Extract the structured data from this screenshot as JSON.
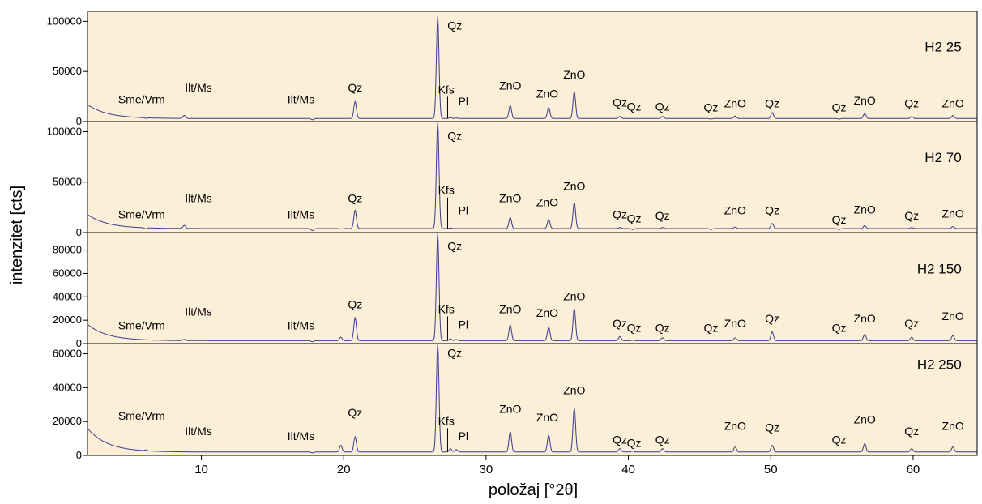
{
  "chart_data": {
    "type": "line",
    "xlabel": "položaj [°2θ]",
    "ylabel": "intenzitet [cts]",
    "xlim": [
      2,
      64.5
    ],
    "x_ticks": [
      10,
      20,
      30,
      40,
      50,
      60
    ],
    "colors": {
      "line": "#3b3b8f",
      "background": "#fcefd8",
      "axis": "#000000"
    },
    "grid": false,
    "panels": [
      {
        "name": "H2 25",
        "ylim": [
          0,
          110000
        ],
        "y_ticks": [
          0,
          50000,
          100000
        ],
        "background": 3000,
        "peaks": [
          [
            6.1,
            2500
          ],
          [
            8.8,
            6000
          ],
          [
            12.5,
            3000
          ],
          [
            17.8,
            1800
          ],
          [
            19.8,
            3000
          ],
          [
            20.8,
            20000
          ],
          [
            26.6,
            105000
          ],
          [
            27.5,
            4000
          ],
          [
            27.9,
            3500
          ],
          [
            31.7,
            16000
          ],
          [
            34.4,
            14000
          ],
          [
            36.2,
            30000
          ],
          [
            39.4,
            5000
          ],
          [
            40.3,
            3000
          ],
          [
            42.4,
            5000
          ],
          [
            45.8,
            2500
          ],
          [
            47.5,
            5500
          ],
          [
            50.1,
            9000
          ],
          [
            54.8,
            2500
          ],
          [
            56.6,
            8000
          ],
          [
            59.9,
            5000
          ],
          [
            62.8,
            6000
          ]
        ],
        "labels": [
          {
            "text": "Sme/Vrm",
            "x": 5.8,
            "y": 18000
          },
          {
            "text": "Ilt/Ms",
            "x": 9.8,
            "y": 30000
          },
          {
            "text": "Ilt/Ms",
            "x": 17.0,
            "y": 18000
          },
          {
            "text": "Qz",
            "x": 20.8,
            "y": 30000
          },
          {
            "text": "Qz",
            "x": 27.8,
            "y": 92000
          },
          {
            "text": "Kfs",
            "x": 27.2,
            "y": 28000
          },
          {
            "text": "Pl",
            "x": 28.4,
            "y": 16000
          },
          {
            "text": "ZnO",
            "x": 31.7,
            "y": 32000
          },
          {
            "text": "ZnO",
            "x": 34.3,
            "y": 24000
          },
          {
            "text": "ZnO",
            "x": 36.2,
            "y": 43000
          },
          {
            "text": "Qz",
            "x": 39.4,
            "y": 15000
          },
          {
            "text": "Qz",
            "x": 40.4,
            "y": 11000
          },
          {
            "text": "Qz",
            "x": 42.4,
            "y": 11000
          },
          {
            "text": "Qz",
            "x": 45.8,
            "y": 10000
          },
          {
            "text": "ZnO",
            "x": 47.5,
            "y": 14000
          },
          {
            "text": "Qz",
            "x": 50.1,
            "y": 14000
          },
          {
            "text": "Qz",
            "x": 54.8,
            "y": 10000
          },
          {
            "text": "ZnO",
            "x": 56.6,
            "y": 17000
          },
          {
            "text": "Qz",
            "x": 59.9,
            "y": 14000
          },
          {
            "text": "ZnO",
            "x": 62.8,
            "y": 14000
          },
          {
            "text": "H2 25",
            "x": 63.4,
            "y": 70000
          }
        ]
      },
      {
        "name": "H2 70",
        "ylim": [
          0,
          110000
        ],
        "y_ticks": [
          0,
          50000,
          100000
        ],
        "background": 4000,
        "peaks": [
          [
            6.1,
            3000
          ],
          [
            8.8,
            7000
          ],
          [
            12.5,
            4000
          ],
          [
            17.8,
            2000
          ],
          [
            19.8,
            3500
          ],
          [
            20.8,
            22000
          ],
          [
            26.6,
            110000
          ],
          [
            27.5,
            4500
          ],
          [
            27.9,
            4000
          ],
          [
            31.7,
            15000
          ],
          [
            34.4,
            13000
          ],
          [
            36.2,
            30000
          ],
          [
            39.4,
            5000
          ],
          [
            40.3,
            3000
          ],
          [
            42.4,
            5000
          ],
          [
            45.8,
            3000
          ],
          [
            47.5,
            5500
          ],
          [
            50.1,
            9000
          ],
          [
            54.8,
            3000
          ],
          [
            56.6,
            7000
          ],
          [
            59.9,
            5000
          ],
          [
            62.8,
            6000
          ]
        ],
        "labels": [
          {
            "text": "Sme/Vrm",
            "x": 5.8,
            "y": 14000
          },
          {
            "text": "Ilt/Ms",
            "x": 9.8,
            "y": 30000
          },
          {
            "text": "Ilt/Ms",
            "x": 17.0,
            "y": 14000
          },
          {
            "text": "Qz",
            "x": 20.8,
            "y": 30000
          },
          {
            "text": "Qz",
            "x": 27.8,
            "y": 92000
          },
          {
            "text": "Kfs",
            "x": 27.2,
            "y": 38000
          },
          {
            "text": "Pl",
            "x": 28.4,
            "y": 18000
          },
          {
            "text": "ZnO",
            "x": 31.7,
            "y": 30000
          },
          {
            "text": "ZnO",
            "x": 34.3,
            "y": 26000
          },
          {
            "text": "ZnO",
            "x": 36.2,
            "y": 42000
          },
          {
            "text": "Qz",
            "x": 39.4,
            "y": 14000
          },
          {
            "text": "Qz",
            "x": 40.4,
            "y": 10000
          },
          {
            "text": "Qz",
            "x": 42.4,
            "y": 13000
          },
          {
            "text": "ZnO",
            "x": 47.5,
            "y": 18000
          },
          {
            "text": "Qz",
            "x": 50.1,
            "y": 18000
          },
          {
            "text": "Qz",
            "x": 54.8,
            "y": 9000
          },
          {
            "text": "ZnO",
            "x": 56.6,
            "y": 19000
          },
          {
            "text": "Qz",
            "x": 59.9,
            "y": 13000
          },
          {
            "text": "ZnO",
            "x": 62.8,
            "y": 15000
          },
          {
            "text": "H2 70",
            "x": 63.4,
            "y": 70000
          }
        ]
      },
      {
        "name": "H2 150",
        "ylim": [
          0,
          95000
        ],
        "y_ticks": [
          0,
          20000,
          40000,
          60000,
          80000
        ],
        "background": 2500,
        "peaks": [
          [
            6.1,
            2500
          ],
          [
            8.8,
            3500
          ],
          [
            17.8,
            1500
          ],
          [
            19.8,
            5500
          ],
          [
            20.8,
            22000
          ],
          [
            26.6,
            95000
          ],
          [
            27.5,
            4000
          ],
          [
            27.9,
            3500
          ],
          [
            31.7,
            16000
          ],
          [
            34.4,
            14000
          ],
          [
            36.2,
            30000
          ],
          [
            39.4,
            6000
          ],
          [
            40.3,
            3000
          ],
          [
            42.4,
            5000
          ],
          [
            45.8,
            2500
          ],
          [
            47.5,
            5000
          ],
          [
            50.1,
            10000
          ],
          [
            54.8,
            2500
          ],
          [
            56.6,
            8000
          ],
          [
            59.9,
            5500
          ],
          [
            62.8,
            7000
          ]
        ],
        "labels": [
          {
            "text": "Sme/Vrm",
            "x": 5.8,
            "y": 12000
          },
          {
            "text": "Ilt/Ms",
            "x": 9.8,
            "y": 24000
          },
          {
            "text": "Ilt/Ms",
            "x": 17.0,
            "y": 12000
          },
          {
            "text": "Qz",
            "x": 20.8,
            "y": 30000
          },
          {
            "text": "Qz",
            "x": 27.8,
            "y": 80000
          },
          {
            "text": "Kfs",
            "x": 27.2,
            "y": 26000
          },
          {
            "text": "Pl",
            "x": 28.4,
            "y": 13000
          },
          {
            "text": "ZnO",
            "x": 31.7,
            "y": 26000
          },
          {
            "text": "ZnO",
            "x": 34.3,
            "y": 23000
          },
          {
            "text": "ZnO",
            "x": 36.2,
            "y": 37000
          },
          {
            "text": "Qz",
            "x": 39.4,
            "y": 14000
          },
          {
            "text": "Qz",
            "x": 40.4,
            "y": 10000
          },
          {
            "text": "Qz",
            "x": 42.4,
            "y": 10000
          },
          {
            "text": "Qz",
            "x": 45.8,
            "y": 10000
          },
          {
            "text": "ZnO",
            "x": 47.5,
            "y": 14000
          },
          {
            "text": "Qz",
            "x": 50.1,
            "y": 18000
          },
          {
            "text": "Qz",
            "x": 54.8,
            "y": 10000
          },
          {
            "text": "ZnO",
            "x": 56.6,
            "y": 18000
          },
          {
            "text": "Qz",
            "x": 59.9,
            "y": 14000
          },
          {
            "text": "ZnO",
            "x": 62.8,
            "y": 20000
          },
          {
            "text": "H2 150",
            "x": 63.4,
            "y": 60000
          }
        ]
      },
      {
        "name": "H2 250",
        "ylim": [
          0,
          66000
        ],
        "y_ticks": [
          0,
          20000,
          40000,
          60000
        ],
        "background": 2000,
        "peaks": [
          [
            6.1,
            2500
          ],
          [
            8.8,
            2000
          ],
          [
            17.8,
            1500
          ],
          [
            19.8,
            6000
          ],
          [
            20.8,
            11000
          ],
          [
            26.6,
            66000
          ],
          [
            27.5,
            4000
          ],
          [
            27.9,
            3500
          ],
          [
            31.7,
            14000
          ],
          [
            34.4,
            12000
          ],
          [
            36.2,
            28000
          ],
          [
            39.4,
            4000
          ],
          [
            40.3,
            2500
          ],
          [
            42.4,
            4000
          ],
          [
            45.8,
            2000
          ],
          [
            47.5,
            5000
          ],
          [
            50.1,
            6000
          ],
          [
            54.8,
            2000
          ],
          [
            56.6,
            7000
          ],
          [
            59.9,
            4000
          ],
          [
            62.8,
            5000
          ]
        ],
        "labels": [
          {
            "text": "Sme/Vrm",
            "x": 5.8,
            "y": 21000
          },
          {
            "text": "Ilt/Ms",
            "x": 9.8,
            "y": 12000
          },
          {
            "text": "Ilt/Ms",
            "x": 17.0,
            "y": 9000
          },
          {
            "text": "Qz",
            "x": 20.8,
            "y": 23000
          },
          {
            "text": "Qz",
            "x": 27.8,
            "y": 58000
          },
          {
            "text": "Kfs",
            "x": 27.2,
            "y": 18000
          },
          {
            "text": "Pl",
            "x": 28.4,
            "y": 9000
          },
          {
            "text": "ZnO",
            "x": 31.7,
            "y": 25000
          },
          {
            "text": "ZnO",
            "x": 34.3,
            "y": 20000
          },
          {
            "text": "ZnO",
            "x": 36.2,
            "y": 36000
          },
          {
            "text": "Qz",
            "x": 39.4,
            "y": 7000
          },
          {
            "text": "Qz",
            "x": 40.4,
            "y": 5000
          },
          {
            "text": "Qz",
            "x": 42.4,
            "y": 7000
          },
          {
            "text": "ZnO",
            "x": 47.5,
            "y": 15000
          },
          {
            "text": "Qz",
            "x": 50.1,
            "y": 14000
          },
          {
            "text": "Qz",
            "x": 54.8,
            "y": 7000
          },
          {
            "text": "ZnO",
            "x": 56.6,
            "y": 19000
          },
          {
            "text": "Qz",
            "x": 59.9,
            "y": 12000
          },
          {
            "text": "ZnO",
            "x": 62.8,
            "y": 15000
          },
          {
            "text": "H2 250",
            "x": 63.4,
            "y": 51000
          }
        ]
      }
    ]
  }
}
